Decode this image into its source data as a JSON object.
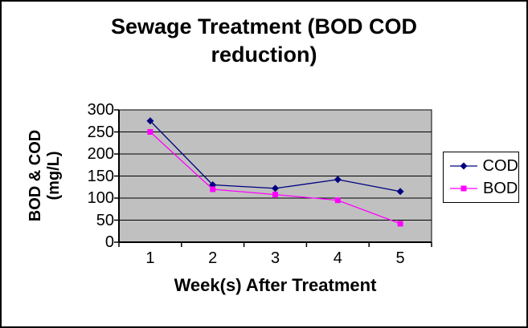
{
  "chart_data": {
    "type": "line",
    "title": "Sewage Treatment (BOD COD reduction)",
    "xlabel": "Week(s) After Treatment",
    "ylabel": "BOD & COD (mg/L)",
    "categories": [
      "1",
      "2",
      "3",
      "4",
      "5"
    ],
    "series": [
      {
        "name": "COD",
        "color": "#000080",
        "marker": "diamond",
        "values": [
          275,
          130,
          122,
          142,
          115
        ]
      },
      {
        "name": "BOD",
        "color": "#FF00FF",
        "marker": "square",
        "values": [
          250,
          120,
          108,
          95,
          42
        ]
      }
    ],
    "ylim": [
      0,
      300
    ],
    "yticks": [
      0,
      50,
      100,
      150,
      200,
      250,
      300
    ],
    "grid": "horizontal",
    "legend_position": "right",
    "plot_bg": "#C0C0C0",
    "grid_color": "#000000",
    "axis_color": "#000000",
    "text_color": "#000000",
    "frame_bg": "#FFFFFF"
  }
}
